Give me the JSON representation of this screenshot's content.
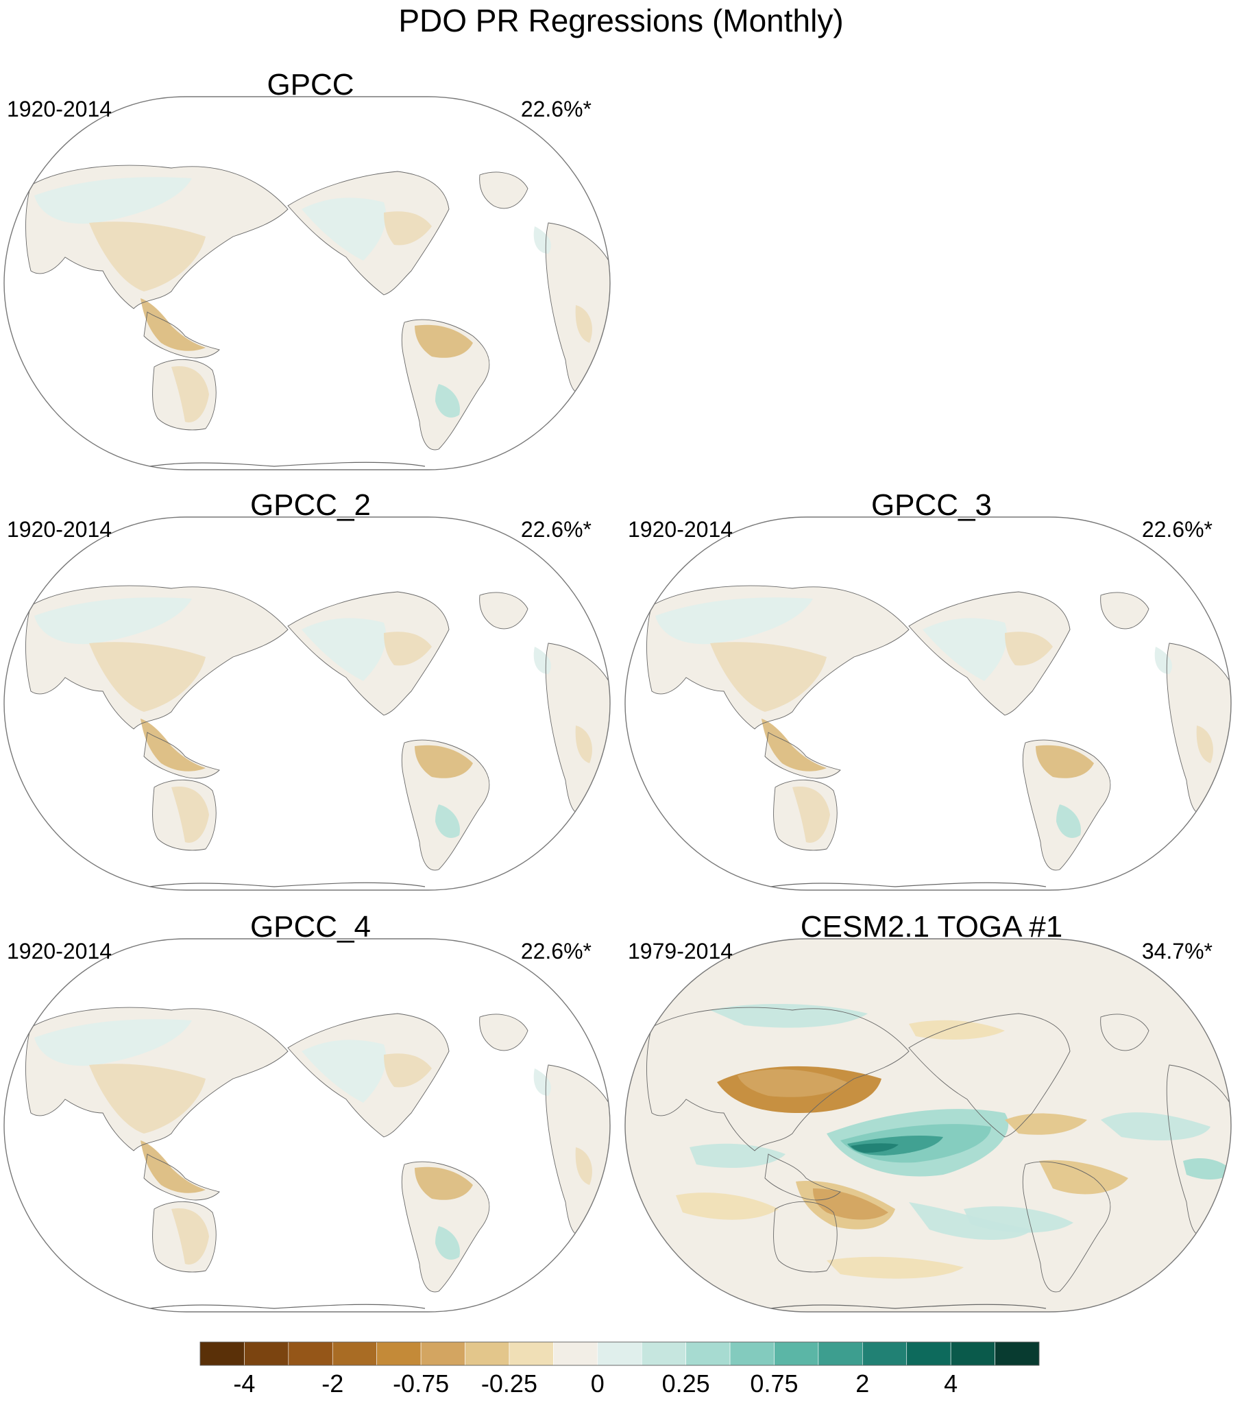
{
  "figure": {
    "title": "PDO PR Regressions (Monthly)"
  },
  "panels": [
    {
      "id": "gpcc",
      "title": "GPCC",
      "period": "1920-2014",
      "variance": "22.6%*",
      "dataset": "observation",
      "slot": "top-left"
    },
    {
      "id": "gpcc2",
      "title": "GPCC_2",
      "period": "1920-2014",
      "variance": "22.6%*",
      "dataset": "observation",
      "slot": "middle-left"
    },
    {
      "id": "gpcc3",
      "title": "GPCC_3",
      "period": "1920-2014",
      "variance": "22.6%*",
      "dataset": "observation",
      "slot": "middle-right"
    },
    {
      "id": "gpcc4",
      "title": "GPCC_4",
      "period": "1920-2014",
      "variance": "22.6%*",
      "dataset": "observation",
      "slot": "bottom-left"
    },
    {
      "id": "cesm",
      "title": "CESM2.1 TOGA #1",
      "period": "1979-2014",
      "variance": "34.7%*",
      "dataset": "model",
      "slot": "bottom-right"
    }
  ],
  "colorbar": {
    "tick_labels": [
      "-4",
      "-2",
      "-0.75",
      "-0.25",
      "0",
      "0.25",
      "0.75",
      "2",
      "4"
    ],
    "tick_boundaries": [
      1,
      3,
      5,
      7,
      9,
      11,
      13,
      15,
      17
    ],
    "colors": [
      "#5a3008",
      "#7b4410",
      "#955618",
      "#a96c24",
      "#c48a38",
      "#d3a561",
      "#e3c68b",
      "#f0dfb6",
      "#f2eee6",
      "#e0efec",
      "#c6e6df",
      "#a7dbd1",
      "#83cbbe",
      "#5bb6a6",
      "#3d9e8f",
      "#218174",
      "#0d6a5c",
      "#0a5a4b",
      "#083b30"
    ]
  },
  "map_colors": {
    "outline": "#777777",
    "land_neutral": "#f2eee6",
    "land_dry": "#ecdcbd",
    "land_drier": "#dcbd82",
    "land_wet": "#e0efec",
    "land_wetter": "#b8e2d9",
    "coast": "#666666"
  }
}
